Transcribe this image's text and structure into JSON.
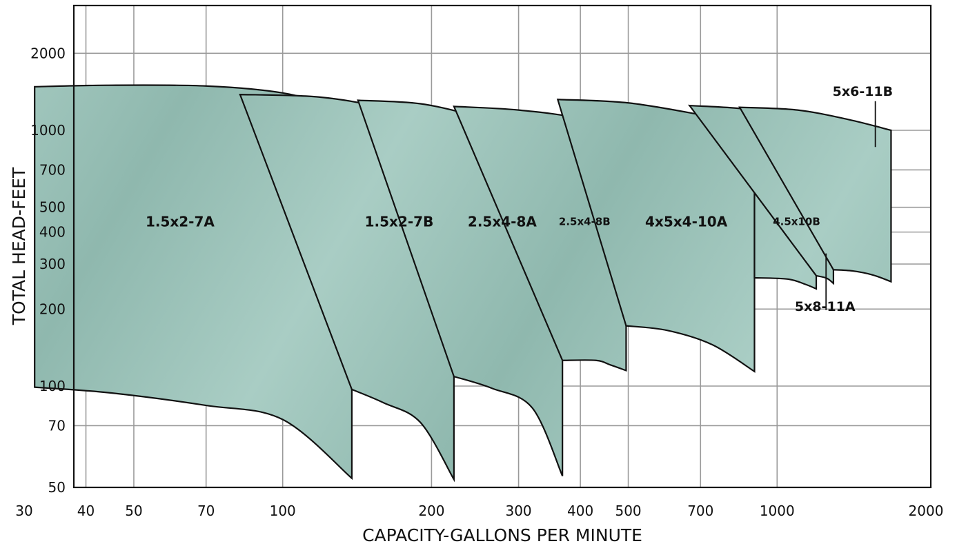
{
  "chart_data": {
    "type": "area",
    "title": "",
    "xlabel": "CAPACITY-GALLONS PER MINUTE",
    "ylabel": "TOTAL HEAD-FEET",
    "xscale": "log",
    "yscale": "log",
    "xlim": [
      30,
      2000
    ],
    "ylim": [
      50,
      2000
    ],
    "x_ticks": [
      30,
      40,
      50,
      70,
      100,
      200,
      300,
      400,
      500,
      700,
      1000,
      2000
    ],
    "y_ticks": [
      50,
      70,
      100,
      200,
      300,
      400,
      500,
      700,
      1000,
      2000
    ],
    "grid": true,
    "fill_color": "#8fb8ae",
    "regions": [
      {
        "name": "1.5x2-7A",
        "label_at": [
          62,
          440
        ],
        "top": [
          [
            31.5,
            1480
          ],
          [
            44,
            1500
          ],
          [
            70,
            1490
          ],
          [
            100,
            1400
          ],
          [
            122,
            1250
          ],
          [
            138,
            1080
          ]
        ],
        "bottom": [
          [
            31.5,
            99
          ],
          [
            45,
            94
          ],
          [
            70,
            84
          ],
          [
            100,
            74
          ],
          [
            138,
            58
          ]
        ]
      },
      {
        "name": "1.5x2-7B",
        "label_at": [
          172,
          440
        ],
        "top": [
          [
            82,
            1380
          ],
          [
            118,
            1350
          ],
          [
            160,
            1220
          ],
          [
            197,
            1040
          ],
          [
            222,
            880
          ]
        ],
        "bottom": [
          [
            138,
            97
          ],
          [
            160,
            86
          ],
          [
            190,
            72
          ],
          [
            222,
            57
          ]
        ]
      },
      {
        "name": "2.5x4-8A",
        "label_at": [
          278,
          440
        ],
        "top": [
          [
            142,
            1310
          ],
          [
            190,
            1270
          ],
          [
            247,
            1130
          ],
          [
            300,
            980
          ],
          [
            368,
            860
          ]
        ],
        "bottom": [
          [
            222,
            109
          ],
          [
            265,
            98
          ],
          [
            320,
            82
          ],
          [
            368,
            60
          ]
        ]
      },
      {
        "name": "2.5x4-8B",
        "label_at": [
          408,
          440
        ],
        "top": [
          [
            222,
            1240
          ],
          [
            300,
            1200
          ],
          [
            400,
            1110
          ],
          [
            495,
            950
          ]
        ],
        "bottom": [
          [
            368,
            126
          ],
          [
            430,
            126
          ],
          [
            460,
            121
          ],
          [
            495,
            115
          ]
        ]
      },
      {
        "name": "4x5x4-10A",
        "label_at": [
          655,
          440
        ],
        "top": [
          [
            360,
            1320
          ],
          [
            500,
            1280
          ],
          [
            700,
            1150
          ],
          [
            900,
            1040
          ]
        ],
        "bottom": [
          [
            495,
            172
          ],
          [
            600,
            165
          ],
          [
            740,
            145
          ],
          [
            900,
            114
          ]
        ]
      },
      {
        "name": "4.5x10B",
        "label_at": [
          1095,
          440
        ],
        "top": [
          [
            900,
            870
          ],
          [
            1050,
            770
          ],
          [
            1160,
            650
          ],
          [
            1200,
            545
          ]
        ],
        "bottom": [
          [
            900,
            265
          ],
          [
            1050,
            262
          ],
          [
            1140,
            250
          ],
          [
            1200,
            240
          ]
        ]
      },
      {
        "name": "5x8-11A",
        "label_at": [
          1250,
          205
        ],
        "top": [
          [
            665,
            1250
          ],
          [
            900,
            1200
          ],
          [
            1150,
            1060
          ],
          [
            1300,
            840
          ]
        ],
        "bottom": [
          [
            1200,
            270
          ],
          [
            1260,
            264
          ],
          [
            1300,
            252
          ]
        ]
      },
      {
        "name": "5x6-11B",
        "label_at": [
          1490,
          1420
        ],
        "top": [
          [
            840,
            1230
          ],
          [
            1100,
            1200
          ],
          [
            1400,
            1100
          ],
          [
            1700,
            1000
          ]
        ],
        "bottom": [
          [
            1300,
            285
          ],
          [
            1420,
            282
          ],
          [
            1560,
            272
          ],
          [
            1700,
            256
          ]
        ]
      }
    ],
    "callouts": [
      {
        "name": "5x6-11B",
        "line_from": [
          1580,
          1300
        ],
        "line_to": [
          1580,
          860
        ]
      },
      {
        "name": "5x8-11A",
        "line_from": [
          1256,
          330
        ],
        "line_to": [
          1256,
          198
        ]
      }
    ]
  }
}
